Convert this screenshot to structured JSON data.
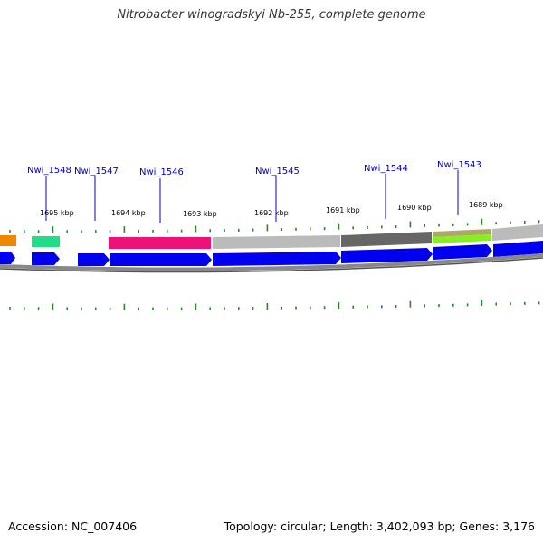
{
  "title": "Nitrobacter winogradskyi Nb-255, complete genome",
  "footer": {
    "accession": "Accession: NC_007406",
    "summary": "Topology: circular; Length: 3,402,093 bp; Genes: 3,176"
  },
  "colors": {
    "cds": "#0000ee",
    "tick": "#1e8c1e",
    "gene_label": "#0000bb",
    "backbone": "#888888"
  },
  "kbp_labels": [
    "1695 kbp",
    "1694 kbp",
    "1693 kbp",
    "1692 kbp",
    "1691 kbp",
    "1690 kbp",
    "1689 kbp"
  ],
  "genes": [
    {
      "name": "Nwi_1548",
      "category_color": "#22dd88"
    },
    {
      "name": "Nwi_1547",
      "category_color": ""
    },
    {
      "name": "Nwi_1546",
      "category_color": "#ee1177"
    },
    {
      "name": "Nwi_1545",
      "category_color": "#bbbbbb"
    },
    {
      "name": "Nwi_1544",
      "category_color": "#666666"
    },
    {
      "name": "Nwi_1543",
      "category_color": "#aaaa66"
    }
  ]
}
